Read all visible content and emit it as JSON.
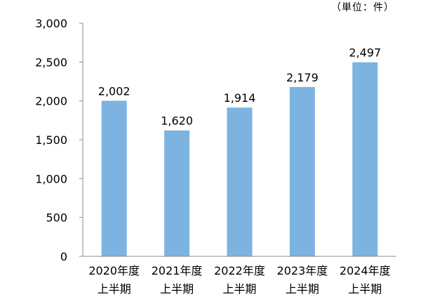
{
  "chart_data": {
    "type": "bar",
    "unit_label": "（単位：件）",
    "categories": [
      [
        "2020年度",
        "上半期"
      ],
      [
        "2021年度",
        "上半期"
      ],
      [
        "2022年度",
        "上半期"
      ],
      [
        "2023年度",
        "上半期"
      ],
      [
        "2024年度",
        "上半期"
      ]
    ],
    "values": [
      2002,
      1620,
      1914,
      2179,
      2497
    ],
    "value_labels": [
      "2,002",
      "1,620",
      "1,914",
      "2,179",
      "2,497"
    ],
    "ylim": [
      0,
      3000
    ],
    "yticks": [
      0,
      500,
      1000,
      1500,
      2000,
      2500,
      3000
    ],
    "ytick_labels": [
      "0",
      "500",
      "1,000",
      "1,500",
      "2,000",
      "2,500",
      "3,000"
    ],
    "grid": false,
    "legend": "none",
    "bar_color": "#7DB3E0"
  }
}
